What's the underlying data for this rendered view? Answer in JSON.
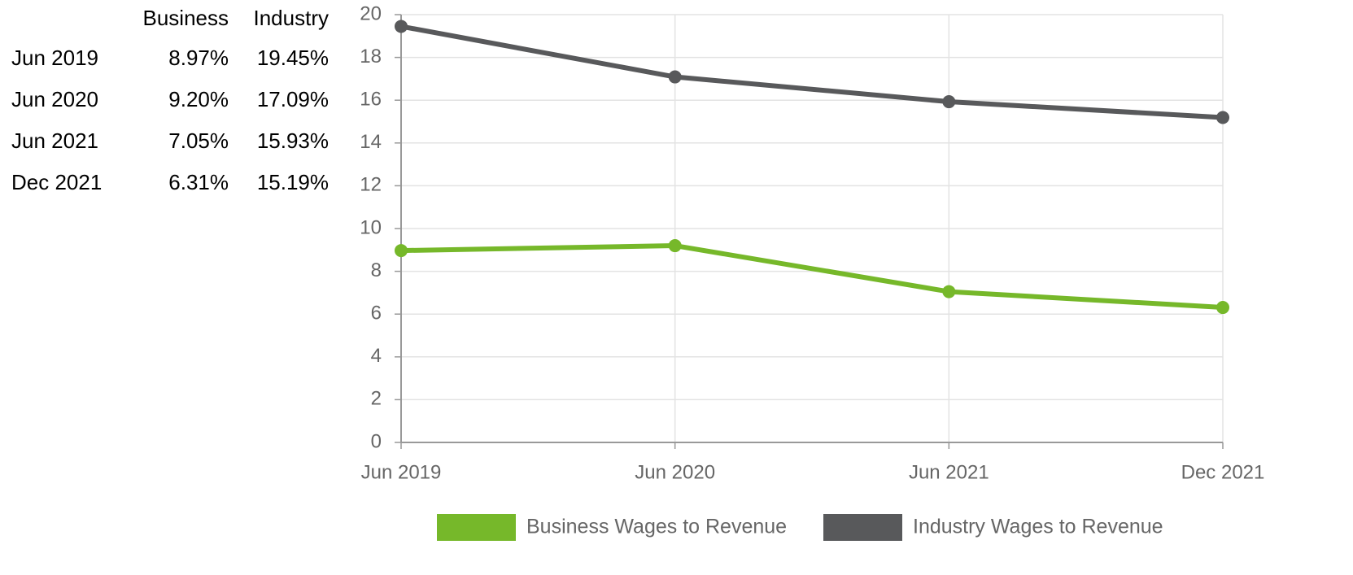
{
  "table": {
    "headers": [
      "Business",
      "Industry"
    ]
  },
  "chart_data": {
    "type": "line",
    "categories": [
      "Jun 2019",
      "Jun 2020",
      "Jun 2021",
      "Dec 2021"
    ],
    "series": [
      {
        "name": "Business Wages to Revenue",
        "color": "#76b82a",
        "values": [
          8.97,
          9.2,
          7.05,
          6.31
        ],
        "value_labels": [
          "8.97%",
          "9.20%",
          "7.05%",
          "6.31%"
        ]
      },
      {
        "name": "Industry Wages to Revenue",
        "color": "#58595b",
        "values": [
          19.45,
          17.09,
          15.93,
          15.19
        ],
        "value_labels": [
          "19.45%",
          "17.09%",
          "15.93%",
          "15.19%"
        ]
      }
    ],
    "ylim": [
      0,
      20
    ],
    "yticks": [
      0,
      2,
      4,
      6,
      8,
      10,
      12,
      14,
      16,
      18,
      20
    ],
    "grid": true,
    "legend": "bottom"
  }
}
